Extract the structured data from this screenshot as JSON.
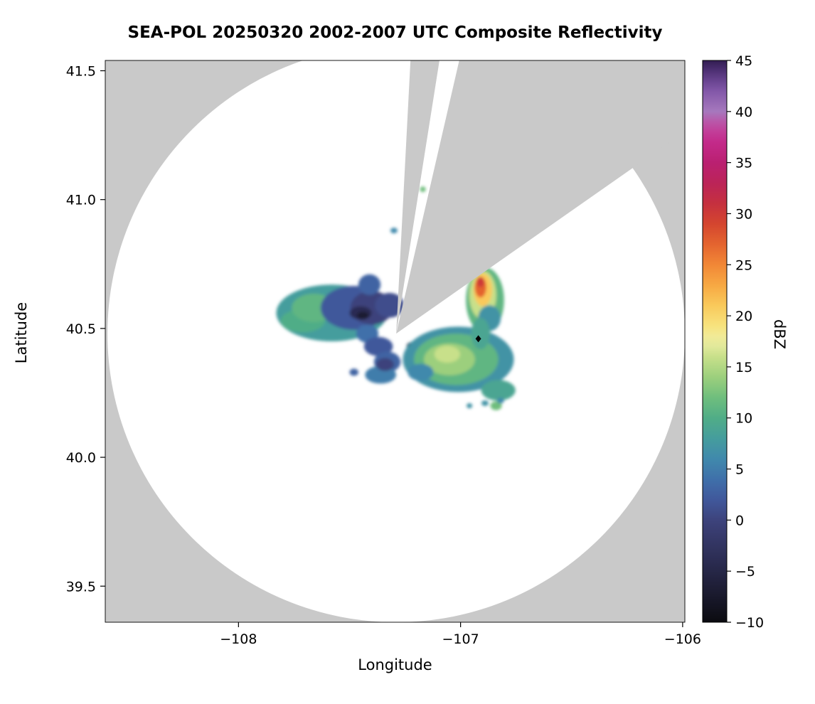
{
  "chart_data": {
    "type": "heatmap",
    "subtype": "radar-composite-reflectivity-ppi",
    "title": "SEA-POL 20250320 2002-2007 UTC Composite Reflectivity",
    "xlabel": "Longitude",
    "ylabel": "Latitude",
    "colorbar_label": "dBZ",
    "xlim": [
      -108.6,
      -105.99
    ],
    "ylim": [
      39.36,
      41.54
    ],
    "xticks": [
      -108,
      -107,
      -106
    ],
    "xtick_labels": [
      "−108",
      "−107",
      "−106"
    ],
    "yticks": [
      39.5,
      40.0,
      40.5,
      41.0,
      41.5
    ],
    "ytick_labels": [
      "39.5",
      "40.0",
      "40.5",
      "41.0",
      "41.5"
    ],
    "colorbar_range": [
      -10,
      45
    ],
    "colorbar_ticks": [
      -10,
      -5,
      0,
      5,
      10,
      15,
      20,
      25,
      30,
      35,
      40,
      45
    ],
    "colorbar_tick_labels": [
      "−10",
      "−5",
      "0",
      "5",
      "10",
      "15",
      "20",
      "25",
      "30",
      "35",
      "40",
      "45"
    ],
    "grid": false,
    "legend": "colorbar-right",
    "background_color": "#c9c9c9",
    "coverage": {
      "center_lon": -107.29,
      "center_lat": 40.48,
      "radius_lon_deg": 1.3,
      "radius_lat_deg": 1.12,
      "blocked_sectors_az_deg": [
        [
          3,
          9
        ],
        [
          13,
          55
        ]
      ]
    },
    "radar_marker": {
      "lon": -106.92,
      "lat": 40.46,
      "color": "#000000"
    },
    "colormap_stops": [
      [
        -10,
        "#0b0b10"
      ],
      [
        -8,
        "#161626"
      ],
      [
        -6,
        "#21213c"
      ],
      [
        -4,
        "#2b2c52"
      ],
      [
        -2,
        "#343766"
      ],
      [
        0,
        "#3d437c"
      ],
      [
        2,
        "#40589b"
      ],
      [
        4,
        "#3f70aa"
      ],
      [
        6,
        "#4089ac"
      ],
      [
        8,
        "#459d9d"
      ],
      [
        10,
        "#50ad87"
      ],
      [
        12,
        "#6fbe7d"
      ],
      [
        14,
        "#9ccf7d"
      ],
      [
        16,
        "#c8e08a"
      ],
      [
        17.5,
        "#eeeea4"
      ],
      [
        19,
        "#f7e37e"
      ],
      [
        21,
        "#f9c95b"
      ],
      [
        23,
        "#f7a843"
      ],
      [
        25,
        "#f18736"
      ],
      [
        27,
        "#e4642f"
      ],
      [
        29,
        "#d4452f"
      ],
      [
        31,
        "#c5303f"
      ],
      [
        33,
        "#bb2458"
      ],
      [
        35,
        "#ba2071"
      ],
      [
        37,
        "#c32a8a"
      ],
      [
        38.5,
        "#c2479f"
      ],
      [
        40,
        "#a678bd"
      ],
      [
        42,
        "#8257a8"
      ],
      [
        43.5,
        "#5c3a85"
      ],
      [
        45,
        "#321d52"
      ]
    ],
    "echoes": [
      {
        "lon": -107.58,
        "lat": 40.56,
        "rlon": 0.25,
        "rlat": 0.11,
        "dbz": 8
      },
      {
        "lon": -107.71,
        "lat": 40.53,
        "rlon": 0.1,
        "rlat": 0.045,
        "dbz": 10
      },
      {
        "lon": -107.66,
        "lat": 40.58,
        "rlon": 0.1,
        "rlat": 0.055,
        "dbz": 11
      },
      {
        "lon": -107.48,
        "lat": 40.58,
        "rlon": 0.15,
        "rlat": 0.085,
        "dbz": 2
      },
      {
        "lon": -107.4,
        "lat": 40.58,
        "rlon": 0.096,
        "rlat": 0.065,
        "dbz": 0
      },
      {
        "lon": -107.32,
        "lat": 40.59,
        "rlon": 0.065,
        "rlat": 0.048,
        "dbz": 1
      },
      {
        "lon": -107.41,
        "lat": 40.67,
        "rlon": 0.05,
        "rlat": 0.04,
        "dbz": 3
      },
      {
        "lon": -107.42,
        "lat": 40.48,
        "rlon": 0.05,
        "rlat": 0.035,
        "dbz": 4
      },
      {
        "lon": -107.45,
        "lat": 40.56,
        "rlon": 0.05,
        "rlat": 0.026,
        "dbz": -4
      },
      {
        "lon": -107.44,
        "lat": 40.55,
        "rlon": 0.027,
        "rlat": 0.015,
        "dbz": -7
      },
      {
        "lon": -107.37,
        "lat": 40.43,
        "rlon": 0.065,
        "rlat": 0.037,
        "dbz": 2
      },
      {
        "lon": -107.33,
        "lat": 40.37,
        "rlon": 0.06,
        "rlat": 0.04,
        "dbz": 3
      },
      {
        "lon": -107.36,
        "lat": 40.32,
        "rlon": 0.07,
        "rlat": 0.034,
        "dbz": 5
      },
      {
        "lon": -107.34,
        "lat": 40.36,
        "rlon": 0.04,
        "rlat": 0.025,
        "dbz": 0
      },
      {
        "lon": -107.22,
        "lat": 40.43,
        "rlon": 0.023,
        "rlat": 0.017,
        "dbz": -5
      },
      {
        "lon": -107.48,
        "lat": 40.33,
        "rlon": 0.02,
        "rlat": 0.014,
        "dbz": 3
      },
      {
        "lon": -107.01,
        "lat": 40.38,
        "rlon": 0.25,
        "rlat": 0.127,
        "dbz": 7
      },
      {
        "lon": -107.02,
        "lat": 40.38,
        "rlon": 0.19,
        "rlat": 0.1,
        "dbz": 11
      },
      {
        "lon": -107.05,
        "lat": 40.38,
        "rlon": 0.115,
        "rlat": 0.062,
        "dbz": 14
      },
      {
        "lon": -107.06,
        "lat": 40.4,
        "rlon": 0.058,
        "rlat": 0.033,
        "dbz": 16
      },
      {
        "lon": -106.83,
        "lat": 40.26,
        "rlon": 0.077,
        "rlat": 0.04,
        "dbz": 9
      },
      {
        "lon": -107.18,
        "lat": 40.33,
        "rlon": 0.058,
        "rlat": 0.033,
        "dbz": 6
      },
      {
        "lon": -106.89,
        "lat": 40.61,
        "rlon": 0.086,
        "rlat": 0.127,
        "dbz": 11
      },
      {
        "lon": -106.9,
        "lat": 40.63,
        "rlon": 0.061,
        "rlat": 0.094,
        "dbz": 16
      },
      {
        "lon": -106.9,
        "lat": 40.65,
        "rlon": 0.042,
        "rlat": 0.064,
        "dbz": 21
      },
      {
        "lon": -106.91,
        "lat": 40.66,
        "rlon": 0.026,
        "rlat": 0.04,
        "dbz": 27
      },
      {
        "lon": -106.91,
        "lat": 40.68,
        "rlon": 0.016,
        "rlat": 0.02,
        "dbz": 30
      },
      {
        "lon": -106.87,
        "lat": 40.54,
        "rlon": 0.051,
        "rlat": 0.05,
        "dbz": 7
      },
      {
        "lon": -106.91,
        "lat": 40.48,
        "rlon": 0.042,
        "rlat": 0.061,
        "dbz": 9
      },
      {
        "lon": -107.3,
        "lat": 40.88,
        "rlon": 0.016,
        "rlat": 0.011,
        "dbz": 6
      },
      {
        "lon": -107.17,
        "lat": 41.04,
        "rlon": 0.013,
        "rlat": 0.011,
        "dbz": 12
      },
      {
        "lon": -106.89,
        "lat": 40.21,
        "rlon": 0.016,
        "rlat": 0.011,
        "dbz": 7
      },
      {
        "lon": -106.84,
        "lat": 40.2,
        "rlon": 0.026,
        "rlat": 0.017,
        "dbz": 12
      },
      {
        "lon": -106.82,
        "lat": 40.22,
        "rlon": 0.016,
        "rlat": 0.011,
        "dbz": 6
      },
      {
        "lon": -106.96,
        "lat": 40.2,
        "rlon": 0.013,
        "rlat": 0.01,
        "dbz": 7
      }
    ]
  }
}
